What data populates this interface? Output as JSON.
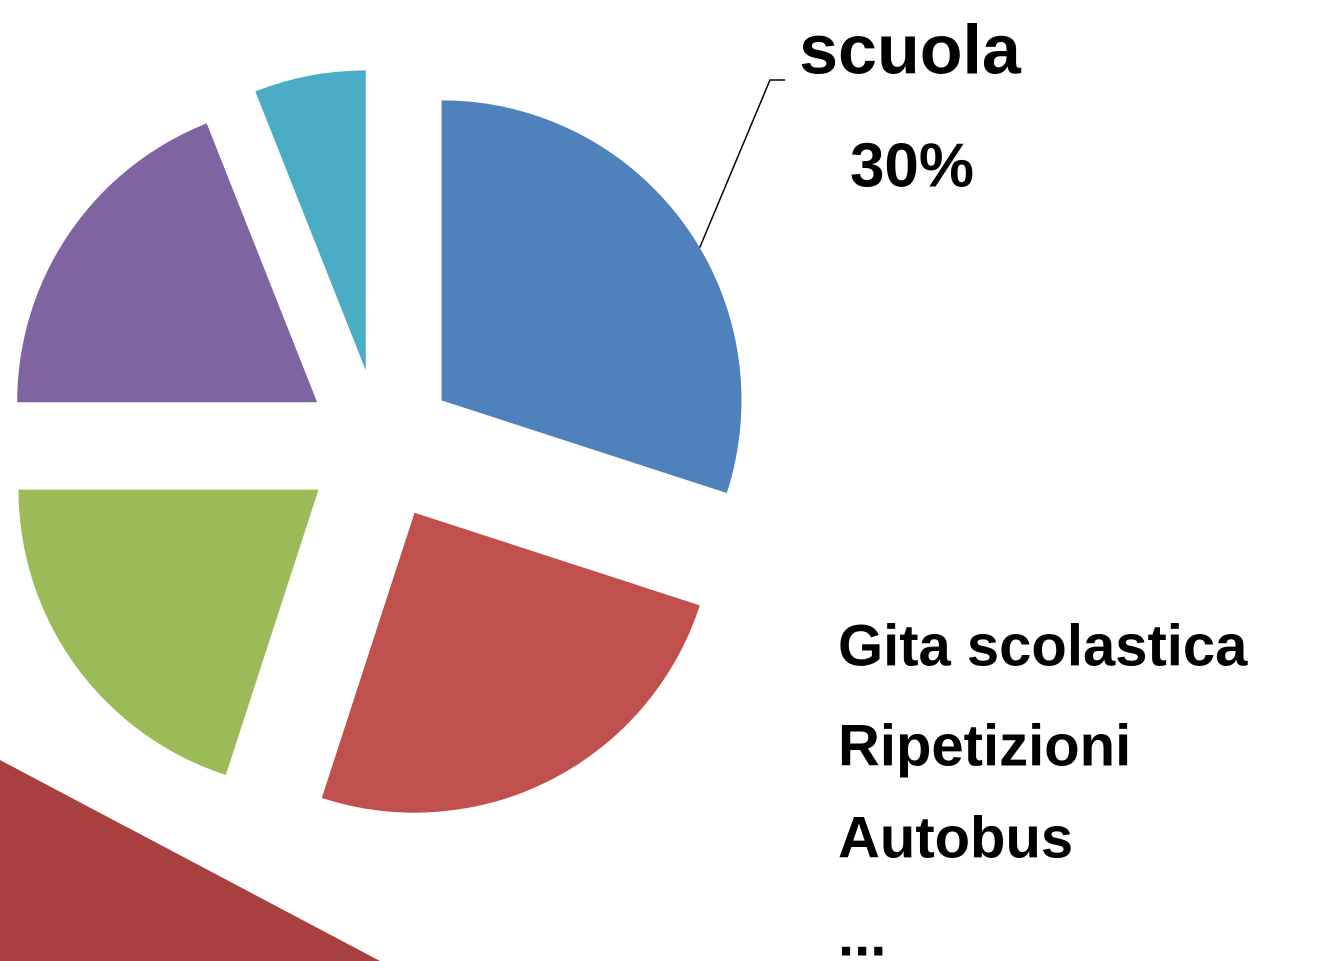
{
  "chart_data": {
    "type": "pie",
    "categories": [
      "scuola",
      null,
      null,
      null,
      null
    ],
    "values": [
      30,
      25,
      20,
      19,
      6
    ],
    "value_labels": [
      "30%",
      null,
      null,
      null,
      null
    ],
    "colors": [
      "#4f81bd",
      "#c0504d",
      "#9bbb59",
      "#8064a2",
      "#4bacc6"
    ],
    "start_angle": 0,
    "exploded": true,
    "annotations": [
      "Gita scolastica",
      "Ripetizioni",
      "Autobus",
      "..."
    ]
  }
}
